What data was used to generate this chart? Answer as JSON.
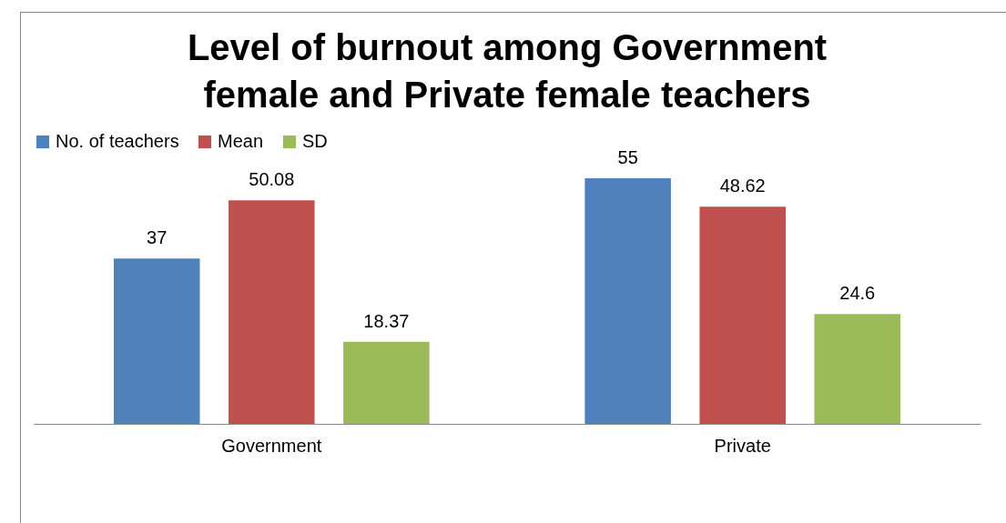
{
  "chart_data": {
    "type": "bar",
    "title": "Level of burnout among Government\nfemale and Private female teachers",
    "categories": [
      "Government",
      "Private"
    ],
    "series": [
      {
        "name": "No. of teachers",
        "color": "#4f81bd",
        "values": [
          37,
          55
        ]
      },
      {
        "name": "Mean",
        "color": "#c0504d",
        "values": [
          50.08,
          48.62
        ]
      },
      {
        "name": "SD",
        "color": "#9bbb59",
        "values": [
          18.37,
          24.6
        ]
      }
    ],
    "data_labels": true,
    "legend": "top",
    "tick_labels": "x"
  }
}
